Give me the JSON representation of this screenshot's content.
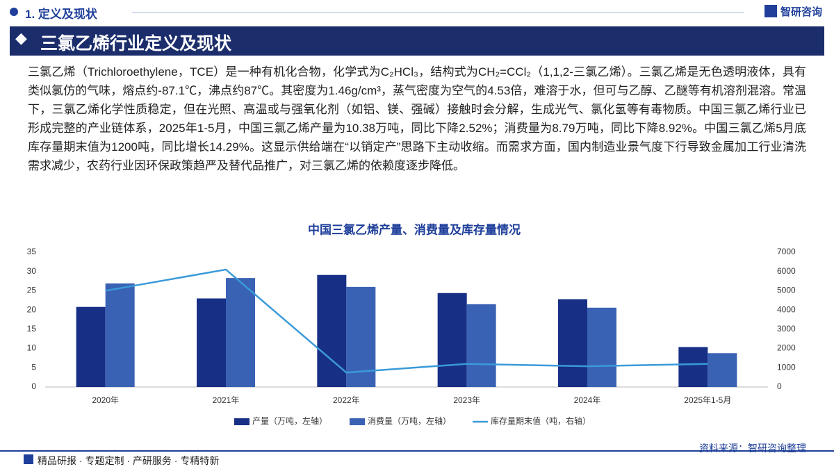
{
  "header": {
    "section": "1. 定义及现状",
    "logo": "智研咨询",
    "title": "三氯乙烯行业定义及现状"
  },
  "paragraph": "三氯乙烯（Trichloroethylene，TCE）是一种有机化合物，化学式为C₂HCl₃，结构式为CH₂=CCl₂（1,1,2-三氯乙烯）。三氯乙烯是无色透明液体，具有类似氯仿的气味，熔点约-87.1℃，沸点约87℃。其密度为1.46g/cm³，蒸气密度为空气的4.53倍，难溶于水，但可与乙醇、乙醚等有机溶剂混溶。常温下，三氯乙烯化学性质稳定，但在光照、高温或与强氧化剂（如铝、镁、强碱）接触时会分解，生成光气、氯化氢等有毒物质。中国三氯乙烯行业已形成完整的产业链体系，2025年1-5月，中国三氯乙烯产量为10.38万吨，同比下降2.52%；消费量为8.79万吨，同比下降8.92%。中国三氯乙烯5月底库存量期末值为1200吨，同比增长14.29%。这显示供给端在“以销定产”思路下主动收缩。而需求方面，国内制造业景气度下行导致金属加工行业清洗需求减少，农药行业因环保政策趋严及替代品推广，对三氯乙烯的依赖度逐步降低。",
  "chart_data": {
    "type": "bar",
    "title": "中国三氯乙烯产量、消费量及库存量情况",
    "categories": [
      "2020年",
      "2021年",
      "2022年",
      "2023年",
      "2024年",
      "2025年1-5月"
    ],
    "series": [
      {
        "name": "产量（万吨，左轴）",
        "type": "bar",
        "color": "#182f86",
        "values": [
          20.8,
          23,
          29.1,
          24.4,
          22.8,
          10.38
        ]
      },
      {
        "name": "消费量（万吨，左轴）",
        "type": "bar",
        "color": "#3a62b4",
        "values": [
          26.9,
          28.3,
          26,
          21.5,
          20.6,
          8.79
        ]
      },
      {
        "name": "库存量期末值（吨，右轴）",
        "type": "line",
        "axis": "y2",
        "color": "#3a9ad9",
        "values": [
          5000,
          6100,
          750,
          1200,
          1080,
          1200
        ]
      }
    ],
    "ylim": [
      0,
      35
    ],
    "yticks": [
      0,
      5,
      10,
      15,
      20,
      25,
      30,
      35
    ],
    "y2lim": [
      0,
      7000
    ],
    "y2ticks": [
      0,
      1000,
      2000,
      3000,
      4000,
      5000,
      6000,
      7000
    ]
  },
  "footer": {
    "services": "精品研报 · 专题定制 · 产研服务 · 专精特新",
    "source": "资料来源：智研咨询整理"
  }
}
